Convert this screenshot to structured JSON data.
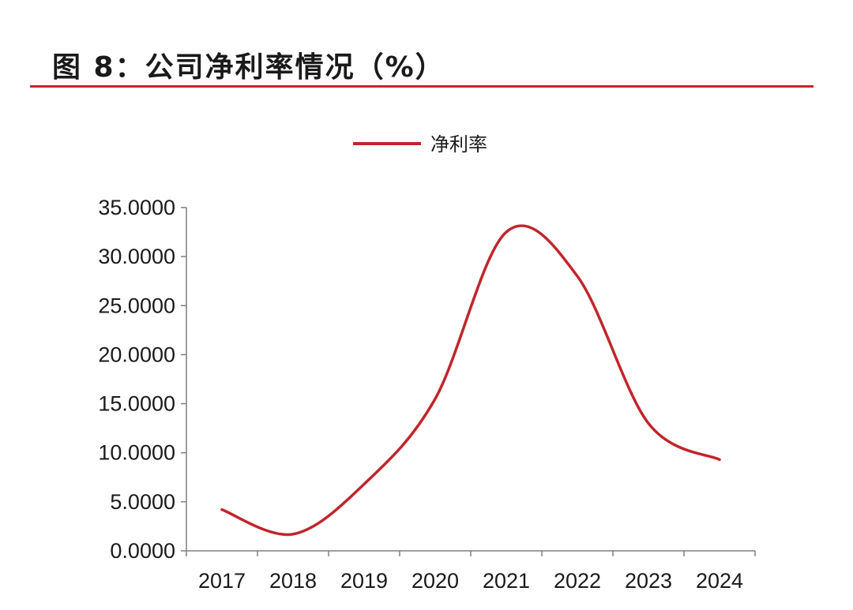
{
  "header": {
    "title": "图 8：公司净利率情况（%）"
  },
  "colors": {
    "accent": "#c0262c",
    "axis": "#7f7f7f",
    "text": "#1a1a1a"
  },
  "chart_data": {
    "type": "line",
    "title": "图 8：公司净利率情况（%）",
    "categories": [
      "2017",
      "2018",
      "2019",
      "2020",
      "2021",
      "2022",
      "2023",
      "2024"
    ],
    "series": [
      {
        "name": "净利率",
        "values": [
          4.2,
          1.7,
          6.8,
          15.5,
          32.5,
          28.0,
          13.0,
          9.3
        ],
        "color": "#c0262c"
      }
    ],
    "xlabel": "",
    "ylabel": "",
    "ylim": [
      0,
      35
    ],
    "yticks": [
      0,
      5,
      10,
      15,
      20,
      25,
      30,
      35
    ],
    "ytick_labels": [
      "0.0000",
      "5.0000",
      "10.0000",
      "15.0000",
      "20.0000",
      "25.0000",
      "30.0000",
      "35.0000"
    ],
    "smooth": true,
    "grid": false,
    "legend": "top-center"
  }
}
